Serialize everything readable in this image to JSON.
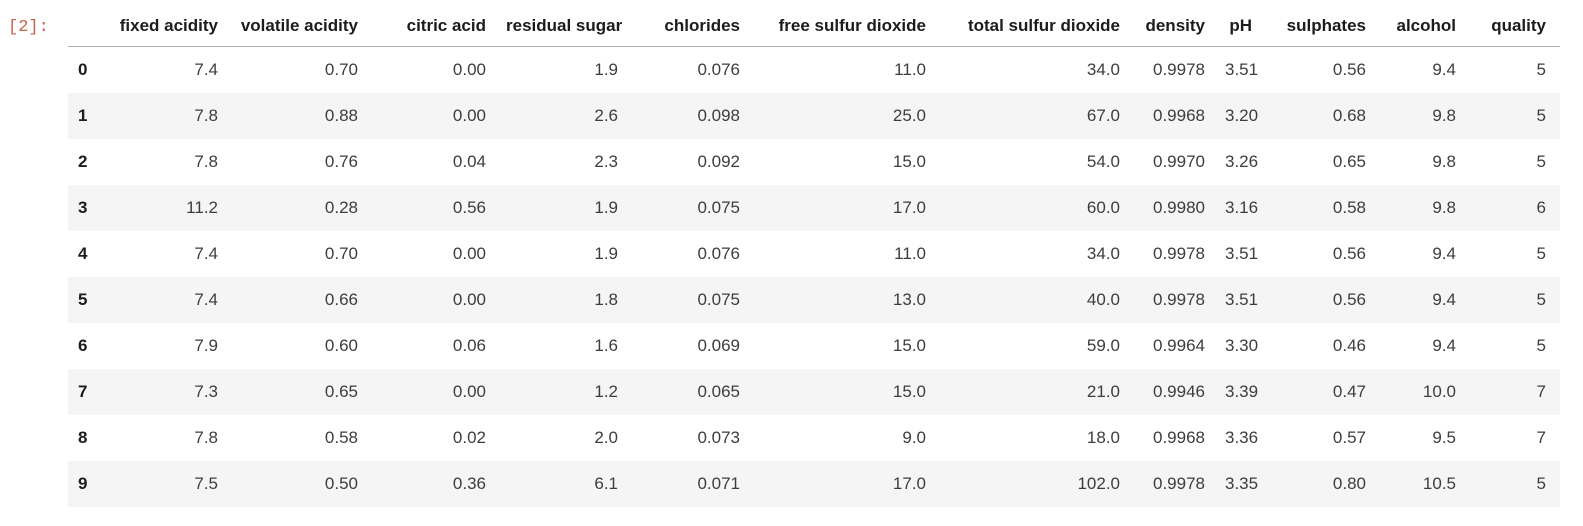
{
  "cell": {
    "execution_label": "[2]:"
  },
  "dataframe": {
    "index_header": "",
    "columns": [
      "fixed acidity",
      "volatile acidity",
      "citric acid",
      "residual sugar",
      "chlorides",
      "free sulfur dioxide",
      "total sulfur dioxide",
      "density",
      "pH",
      "sulphates",
      "alcohol",
      "quality"
    ],
    "rows": [
      {
        "index": "0",
        "cells": [
          "7.4",
          "0.70",
          "0.00",
          "1.9",
          "0.076",
          "11.0",
          "34.0",
          "0.9978",
          "3.51",
          "0.56",
          "9.4",
          "5"
        ]
      },
      {
        "index": "1",
        "cells": [
          "7.8",
          "0.88",
          "0.00",
          "2.6",
          "0.098",
          "25.0",
          "67.0",
          "0.9968",
          "3.20",
          "0.68",
          "9.8",
          "5"
        ]
      },
      {
        "index": "2",
        "cells": [
          "7.8",
          "0.76",
          "0.04",
          "2.3",
          "0.092",
          "15.0",
          "54.0",
          "0.9970",
          "3.26",
          "0.65",
          "9.8",
          "5"
        ]
      },
      {
        "index": "3",
        "cells": [
          "11.2",
          "0.28",
          "0.56",
          "1.9",
          "0.075",
          "17.0",
          "60.0",
          "0.9980",
          "3.16",
          "0.58",
          "9.8",
          "6"
        ]
      },
      {
        "index": "4",
        "cells": [
          "7.4",
          "0.70",
          "0.00",
          "1.9",
          "0.076",
          "11.0",
          "34.0",
          "0.9978",
          "3.51",
          "0.56",
          "9.4",
          "5"
        ]
      },
      {
        "index": "5",
        "cells": [
          "7.4",
          "0.66",
          "0.00",
          "1.8",
          "0.075",
          "13.0",
          "40.0",
          "0.9978",
          "3.51",
          "0.56",
          "9.4",
          "5"
        ]
      },
      {
        "index": "6",
        "cells": [
          "7.9",
          "0.60",
          "0.06",
          "1.6",
          "0.069",
          "15.0",
          "59.0",
          "0.9964",
          "3.30",
          "0.46",
          "9.4",
          "5"
        ]
      },
      {
        "index": "7",
        "cells": [
          "7.3",
          "0.65",
          "0.00",
          "1.2",
          "0.065",
          "15.0",
          "21.0",
          "0.9946",
          "3.39",
          "0.47",
          "10.0",
          "7"
        ]
      },
      {
        "index": "8",
        "cells": [
          "7.8",
          "0.58",
          "0.02",
          "2.0",
          "0.073",
          "9.0",
          "18.0",
          "0.9968",
          "3.36",
          "0.57",
          "9.5",
          "7"
        ]
      },
      {
        "index": "9",
        "cells": [
          "7.5",
          "0.50",
          "0.36",
          "6.1",
          "0.071",
          "17.0",
          "102.0",
          "0.9978",
          "3.35",
          "0.80",
          "10.5",
          "5"
        ]
      }
    ]
  },
  "colors": {
    "execution_label": "#c5614c",
    "row_stripe": "#f5f5f5",
    "header_border": "#b0b0b0",
    "header_text": "#1c1c1c",
    "body_text": "#3d3d3d",
    "background": "#ffffff"
  }
}
